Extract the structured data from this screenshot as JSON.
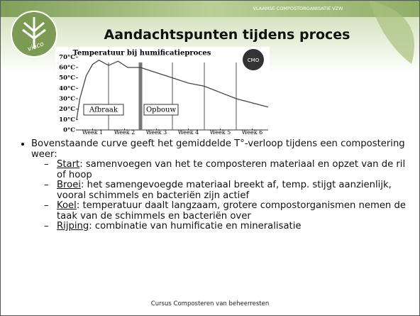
{
  "header": {
    "organisation": "VLAAMSE COMPOSTORGANISATIE VZW",
    "logo_text": "viaco",
    "title": "Aandachtspunten tijdens proces"
  },
  "chart_data": {
    "type": "line",
    "title": "Temperatuur bij humificatieproces",
    "badge": "CMO",
    "x": [
      0,
      0.1,
      0.3,
      0.5,
      0.7,
      1.0,
      1.3,
      1.6,
      2.0,
      2.5,
      3.0,
      3.5,
      4.0,
      4.5,
      5.0,
      5.5,
      6.0
    ],
    "values": [
      10,
      30,
      52,
      63,
      67,
      62,
      66,
      60,
      60,
      55,
      50,
      45,
      42,
      36,
      30,
      26,
      22
    ],
    "color": "#444444",
    "xlim": [
      0,
      6
    ],
    "xticks": [
      {
        "value": 0.5,
        "label": "Week 1"
      },
      {
        "value": 1.5,
        "label": "Week 2"
      },
      {
        "value": 2.5,
        "label": "Week 3"
      },
      {
        "value": 3.5,
        "label": "Week 4"
      },
      {
        "value": 4.5,
        "label": "Week 5"
      },
      {
        "value": 5.5,
        "label": "Week 6"
      }
    ],
    "ylim": [
      0,
      75
    ],
    "yticks": [
      {
        "value": 70,
        "label": "70°C"
      },
      {
        "value": 60,
        "label": "60°C"
      },
      {
        "value": 50,
        "label": "50°C"
      },
      {
        "value": 40,
        "label": "40°C"
      },
      {
        "value": 30,
        "label": "30°C"
      },
      {
        "value": 20,
        "label": "20°C"
      },
      {
        "value": 10,
        "label": "10°C"
      },
      {
        "value": 0,
        "label": "0°C"
      }
    ],
    "annotations": [
      "Afbraak",
      "Opbouw"
    ]
  },
  "bullets": {
    "intro": "Bovenstaande curve geeft het gemiddelde T°-verloop tijdens een  compostering weer:",
    "items": [
      {
        "term": "Start",
        "text": ": samenvoegen van het te composteren materiaal en opzet van de ril of hoop"
      },
      {
        "term": "Broei",
        "text": ": het samengevoegde materiaal breekt af, temp. stijgt aanzienlijk, vooral schimmels en bacteriën zijn actief"
      },
      {
        "term": "Koel",
        "text": ": temperatuur daalt langzaam, grotere compostorganismen nemen de taak van de schimmels en bacteriën over"
      },
      {
        "term": "Rijping",
        "text": ": combinatie van humificatie en mineralisatie"
      }
    ]
  },
  "footer": "Cursus Composteren van beheerresten"
}
